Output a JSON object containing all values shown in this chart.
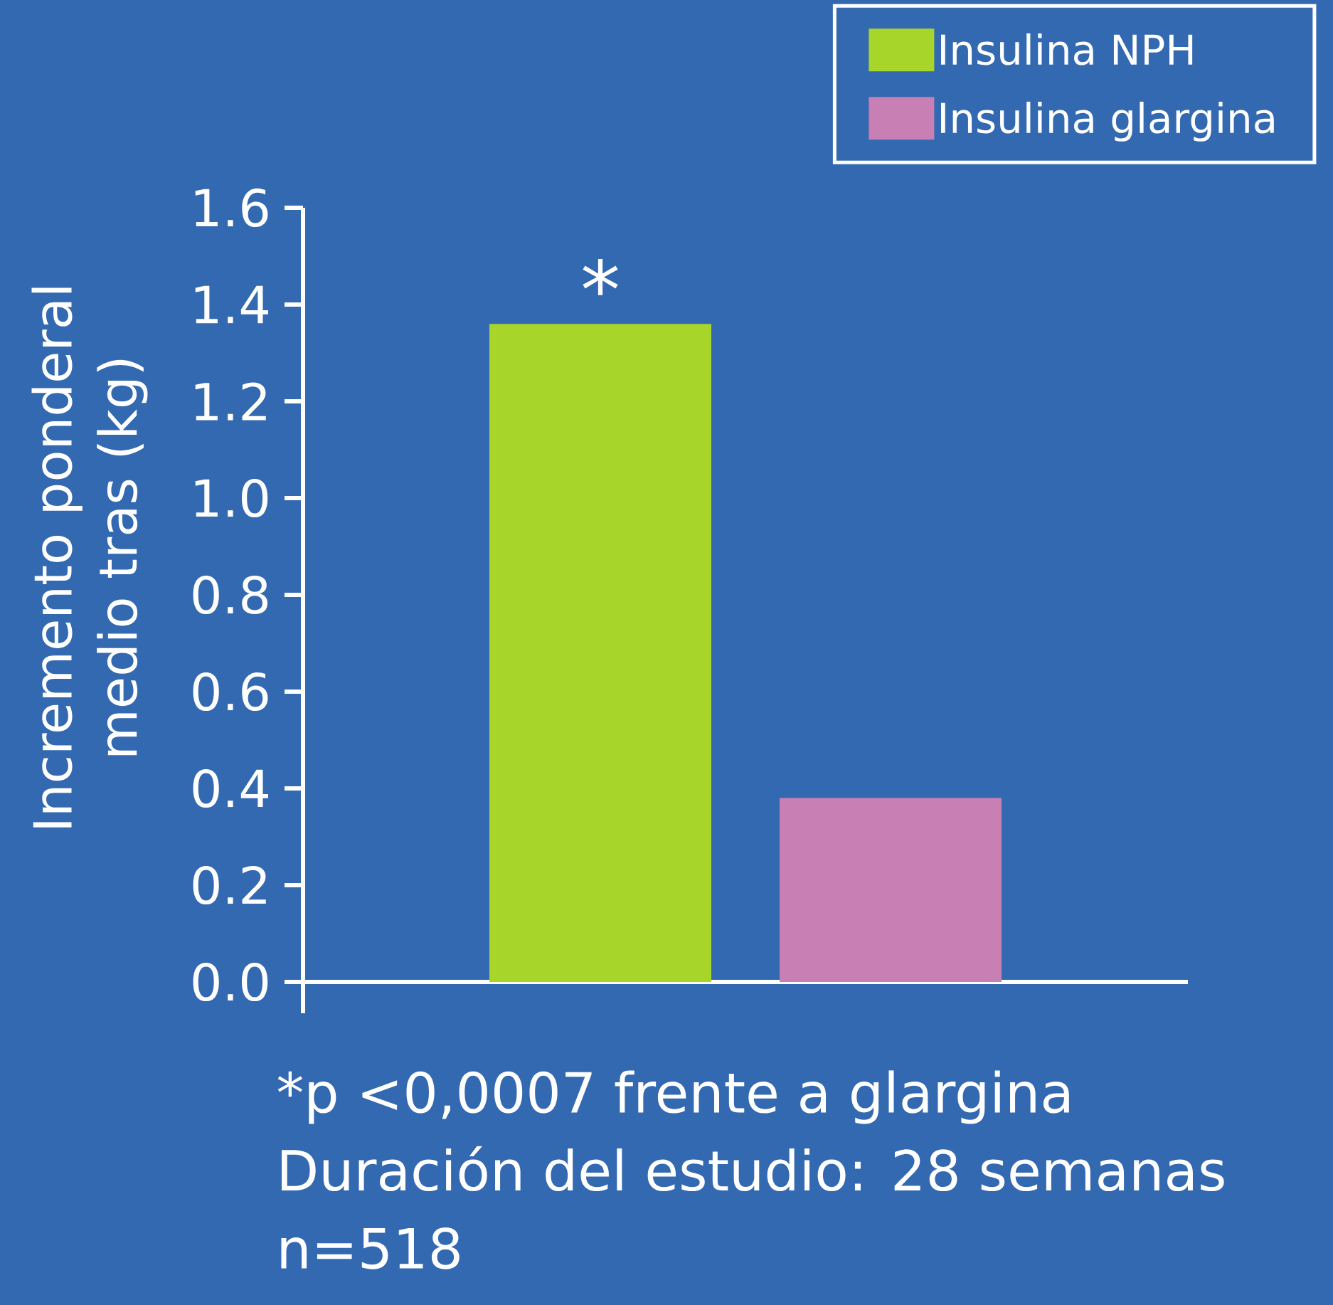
{
  "chart_data": {
    "type": "bar",
    "ylabel": "Incremento ponderal medio tras (kg)",
    "categories": [
      null
    ],
    "series": [
      {
        "name": "Insulina NPH",
        "color": "#a8d52a",
        "values": [
          1.36
        ]
      },
      {
        "name": "Insulina glargina",
        "color": "#c77fb4",
        "values": [
          0.38
        ]
      }
    ],
    "ylim": [
      0,
      1.6
    ],
    "yticks": [
      {
        "value": 0,
        "label": "0.0"
      },
      0.2,
      0.4,
      0.6,
      0.8,
      {
        "value": 1,
        "label": "1.0"
      },
      1.2,
      1.4,
      1.6
    ],
    "tick_labels": "y",
    "legend": "top right",
    "annotations": [
      {
        "text": "*",
        "y": 1.36
      },
      "*p <0,0007 frente a glargina",
      "Duración del estudio: 28 semanas",
      "n=518"
    ]
  }
}
